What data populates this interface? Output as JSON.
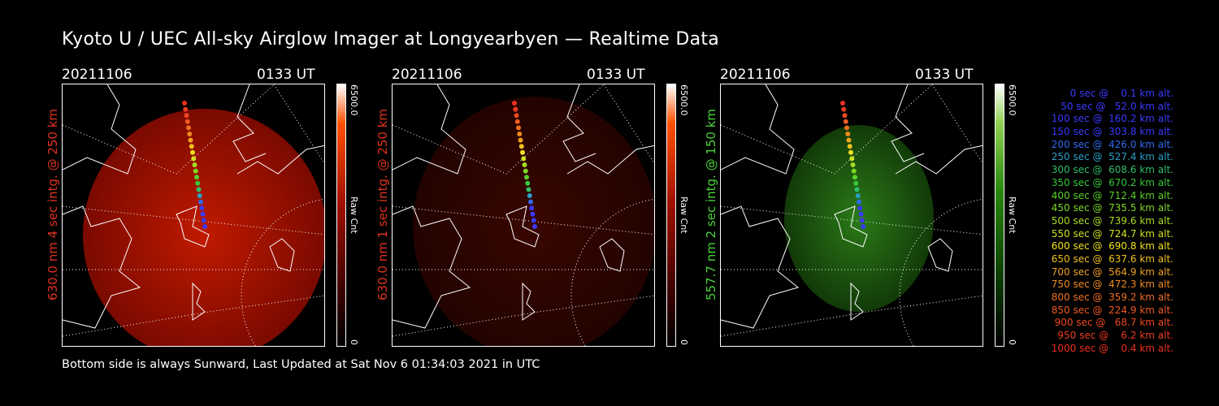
{
  "title": "Kyoto U / UEC All-sky Airglow Imager at Longyearbyen — Realtime Data",
  "panels": [
    {
      "date": "20211106",
      "time": "0133 UT",
      "label": "630.0 nm 4 sec intg. @ 250 km",
      "label_color": "#e0321e",
      "cbar_max": "6500.0",
      "cbar_min": "0",
      "cbar_unit": "Raw Cnt",
      "tone": "red-strong"
    },
    {
      "date": "20211106",
      "time": "0133 UT",
      "label": "630.0 nm 1 sec intg. @ 250 km",
      "label_color": "#e0321e",
      "cbar_max": "6500.0",
      "cbar_min": "0",
      "cbar_unit": "Raw Cnt",
      "tone": "red-faint"
    },
    {
      "date": "20211106",
      "time": "0133 UT",
      "label": "557.7 nm 2 sec intg. @ 150 km",
      "label_color": "#4ad43a",
      "cbar_max": "6500.0",
      "cbar_min": "0",
      "cbar_unit": "Raw Cnt",
      "tone": "green"
    }
  ],
  "footer": "Bottom side is always Sunward, Last Updated at Sat Nov  6 01:34:03 2021 in UTC",
  "legend": [
    {
      "text": "   0 sec @    0.1 km alt.",
      "color": "#3a3aff"
    },
    {
      "text": "  50 sec @   52.0 km alt.",
      "color": "#3a3aff"
    },
    {
      "text": " 100 sec @  160.2 km alt.",
      "color": "#3a3aff"
    },
    {
      "text": " 150 sec @  303.8 km alt.",
      "color": "#3a3aff"
    },
    {
      "text": " 200 sec @  426.0 km alt.",
      "color": "#2f6bf0"
    },
    {
      "text": " 250 sec @  527.4 km alt.",
      "color": "#2aa0c8"
    },
    {
      "text": " 300 sec @  608.6 km alt.",
      "color": "#2fbf6a"
    },
    {
      "text": " 350 sec @  670.2 km alt.",
      "color": "#35c83a"
    },
    {
      "text": " 400 sec @  712.4 km alt.",
      "color": "#58d22a"
    },
    {
      "text": " 450 sec @  735.5 km alt.",
      "color": "#7fd826"
    },
    {
      "text": " 500 sec @  739.6 km alt.",
      "color": "#a8dc24"
    },
    {
      "text": " 550 sec @  724.7 km alt.",
      "color": "#d0e020"
    },
    {
      "text": " 600 sec @  690.8 km alt.",
      "color": "#f0e020"
    },
    {
      "text": " 650 sec @  637.6 km alt.",
      "color": "#f0c020"
    },
    {
      "text": " 700 sec @  564.9 km alt.",
      "color": "#f0a020"
    },
    {
      "text": " 750 sec @  472.3 km alt.",
      "color": "#f08a20"
    },
    {
      "text": " 800 sec @  359.2 km alt.",
      "color": "#f07020"
    },
    {
      "text": " 850 sec @  224.9 km alt.",
      "color": "#f05a20"
    },
    {
      "text": " 900 sec @   68.7 km alt.",
      "color": "#f04820"
    },
    {
      "text": " 950 sec @    6.2 km alt.",
      "color": "#f03a20"
    },
    {
      "text": "1000 sec @    0.4 km alt.",
      "color": "#f03020"
    }
  ]
}
